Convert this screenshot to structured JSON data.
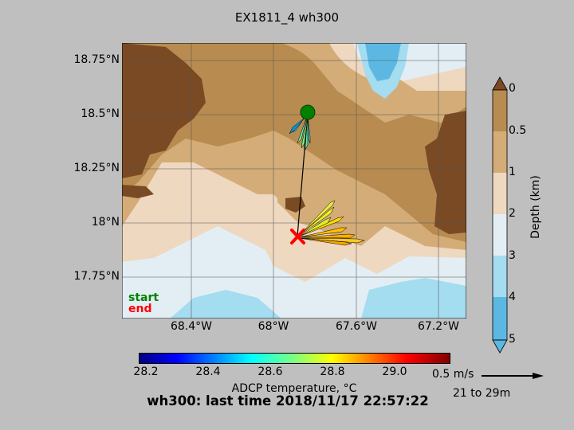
{
  "title": "EX1811_4 wh300",
  "map": {
    "lat_ticks": [
      "18.75°N",
      "18.5°N",
      "18.25°N",
      "18°N",
      "17.75°N"
    ],
    "lon_ticks": [
      "68.4°W",
      "68°W",
      "67.6°W",
      "67.2°W"
    ],
    "legend": {
      "start": "start",
      "end": "end"
    }
  },
  "depth_colorbar": {
    "label": "Depth (km)",
    "ticks": [
      "0",
      "0.5",
      "1",
      "2",
      "3",
      "4",
      "5"
    ],
    "colors": [
      "#7a4a24",
      "#b88c50",
      "#d4ac78",
      "#efd8c0",
      "#e3eef4",
      "#a4dcf0",
      "#5cb8e2"
    ]
  },
  "temp_colorbar": {
    "label": "ADCP temperature, °C",
    "ticks": [
      "28.2",
      "28.4",
      "28.6",
      "28.8",
      "29.0"
    ]
  },
  "scale": {
    "label": "0.5 m/s",
    "depth_range": "21 to 29m"
  },
  "status": "wh300: last time 2018/11/17 22:57:22",
  "colors": {
    "start": "#008000",
    "end": "#ff0000",
    "track": "#000000"
  }
}
